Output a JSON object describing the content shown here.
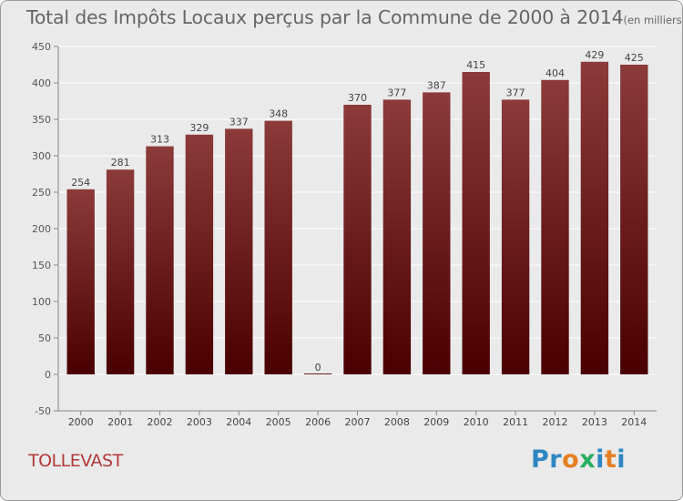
{
  "title": "Total des Impôts Locaux perçus par la Commune de 2000 à 2014",
  "unit": "(en milliers d'€)",
  "commune": "TOLLEVAST",
  "logo": {
    "letters": [
      "P",
      "r",
      "o",
      "x",
      "i",
      "t",
      "i"
    ],
    "colors": [
      "#2e86c1",
      "#2e86c1",
      "#e67e22",
      "#27ae60",
      "#2e86c1",
      "#e67e22",
      "#2e86c1"
    ]
  },
  "colors": {
    "bar_top": "#8c3a3a",
    "bar_bottom": "#4a0000",
    "grid": "#ffffff",
    "axis": "#888888"
  },
  "chart_data": {
    "type": "bar",
    "title": "Total des Impôts Locaux perçus par la Commune de 2000 à 2014",
    "ylabel": "en milliers d'€",
    "xlabel": "",
    "categories": [
      "2000",
      "2001",
      "2002",
      "2003",
      "2004",
      "2005",
      "2006",
      "2007",
      "2008",
      "2009",
      "2010",
      "2011",
      "2012",
      "2013",
      "2014"
    ],
    "values": [
      254,
      281,
      313,
      329,
      337,
      348,
      0,
      370,
      377,
      387,
      415,
      377,
      404,
      429,
      425
    ],
    "ylim": [
      -50,
      450
    ],
    "yticks": [
      -50,
      0,
      50,
      100,
      150,
      200,
      250,
      300,
      350,
      400,
      450
    ],
    "grid": true
  }
}
